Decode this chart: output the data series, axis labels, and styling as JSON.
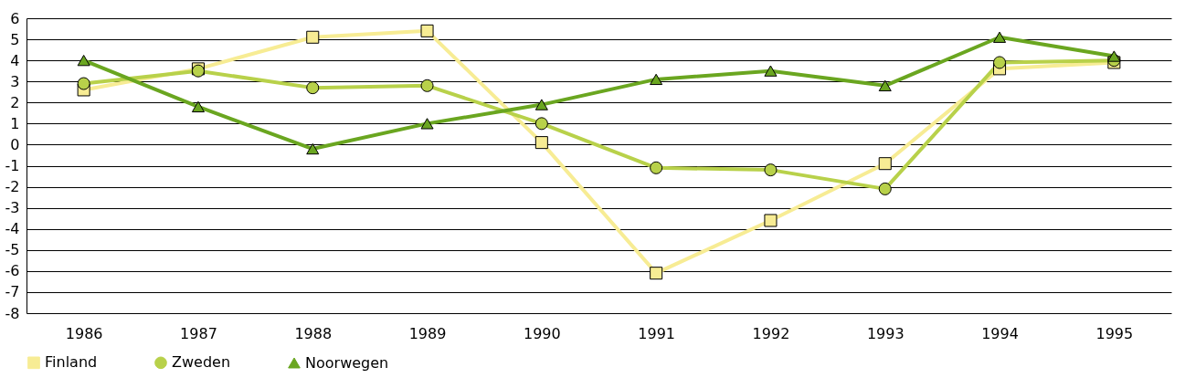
{
  "chart_data": {
    "type": "line",
    "categories": [
      "1986",
      "1987",
      "1988",
      "1989",
      "1990",
      "1991",
      "1992",
      "1993",
      "1994",
      "1995"
    ],
    "series": [
      {
        "name": "Finland",
        "color": "#f7ec94",
        "marker": "square",
        "values": [
          2.6,
          3.6,
          5.1,
          5.4,
          0.1,
          -6.1,
          -3.6,
          -0.9,
          3.6,
          3.9
        ]
      },
      {
        "name": "Zweden",
        "color": "#b8d14a",
        "marker": "circle",
        "values": [
          2.9,
          3.5,
          2.7,
          2.8,
          1.0,
          -1.1,
          -1.2,
          -2.1,
          3.9,
          4.0
        ]
      },
      {
        "name": "Noorwegen",
        "color": "#6aa620",
        "marker": "triangle",
        "values": [
          4.0,
          1.8,
          -0.2,
          1.0,
          1.9,
          3.1,
          3.5,
          2.8,
          5.1,
          4.2
        ]
      }
    ],
    "ylim": [
      -8,
      6
    ],
    "yticks": [
      -8,
      -7,
      -6,
      -5,
      -4,
      -3,
      -2,
      -1,
      0,
      1,
      2,
      3,
      4,
      5,
      6
    ],
    "grid": "y",
    "legend": "bottom left",
    "line_style": "solid"
  }
}
